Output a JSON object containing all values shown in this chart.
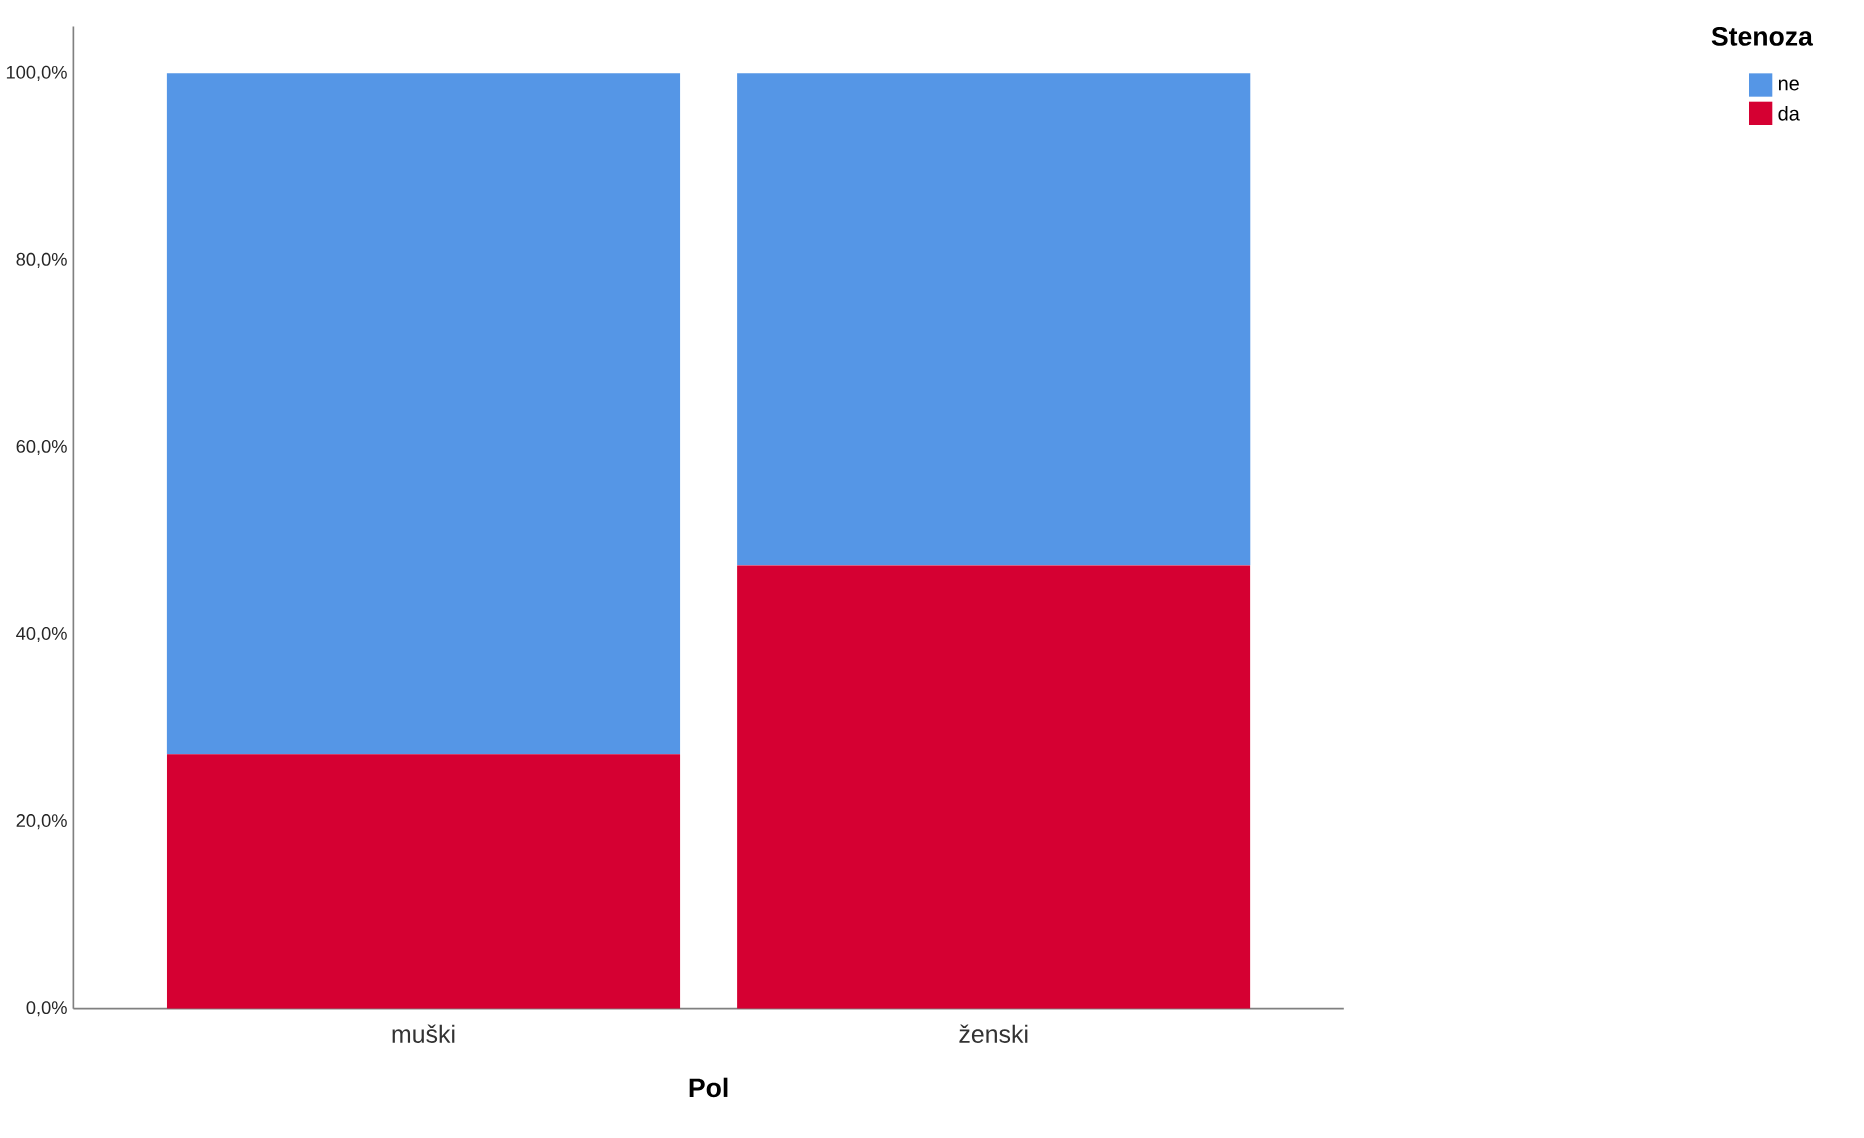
{
  "chart_data": {
    "type": "bar",
    "stacked": true,
    "xlabel": "Pol",
    "legend_title": "Stenoza",
    "legend": "top right",
    "categories": [
      "muški",
      "ženski"
    ],
    "series": [
      {
        "name": "da",
        "color": "#d50032",
        "values": [
          27.2,
          47.4
        ]
      },
      {
        "name": "ne",
        "color": "#5596e6",
        "values": [
          72.8,
          52.6
        ]
      }
    ],
    "ylim": [
      0,
      105
    ],
    "yticks": [
      {
        "value": 0,
        "label": "0,0%"
      },
      {
        "value": 20,
        "label": "20,0%"
      },
      {
        "value": 40,
        "label": "40,0%"
      },
      {
        "value": 60,
        "label": "60,0%"
      },
      {
        "value": 80,
        "label": "80,0%"
      },
      {
        "value": 100,
        "label": "100,0%"
      }
    ],
    "grid": false
  }
}
